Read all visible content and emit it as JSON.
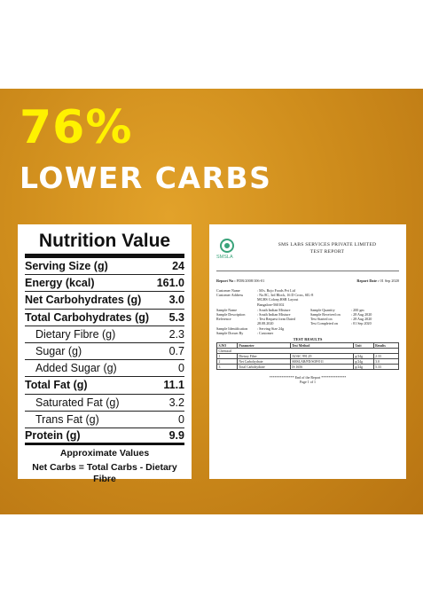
{
  "headline": {
    "percent": "76%",
    "subtitle": "LOWER CARBS"
  },
  "nutrition": {
    "title": "Nutrition Value",
    "rows": [
      {
        "label": "Serving Size (g)",
        "value": "24"
      },
      {
        "label": "Energy (kcal)",
        "value": "161.0"
      },
      {
        "label": "Net Carbohydrates (g)",
        "value": "3.0"
      },
      {
        "label": "Total Carbohydrates (g)",
        "value": "5.3"
      },
      {
        "label": "Dietary Fibre (g)",
        "value": "2.3"
      },
      {
        "label": "Sugar (g)",
        "value": "0.7"
      },
      {
        "label": "Added Sugar (g)",
        "value": "0"
      },
      {
        "label": "Total Fat (g)",
        "value": "11.1"
      },
      {
        "label": "Saturated Fat (g)",
        "value": "3.2"
      },
      {
        "label": "Trans Fat (g)",
        "value": "0"
      },
      {
        "label": "Protein (g)",
        "value": "9.9"
      }
    ],
    "footer_line1": "Approximate Values",
    "footer_line2": "Net Carbs = Total Carbs - Dietary Fibre"
  },
  "report": {
    "logo_text": "SMSLA",
    "company": "SMS LABS SERVICES PRIVATE LIMITED",
    "title": "TEST REPORT",
    "report_no_label": "Report No :",
    "report_no": "FDR/2008/106-01",
    "report_date_label": "Report Date :",
    "report_date": "01 Sep 2020",
    "customer_name_label": "Customer Name",
    "customer_name": ": M/s. Bojo Foods Pvt Ltd",
    "customer_address_label": "Customer Address",
    "customer_address_1": ": No.8C, 3rd Block, 16 D Cross, SIL-8",
    "customer_address_2": "MGHS Colony,HSR Layout",
    "customer_address_3": "Bangalore-560102",
    "left_fields": [
      {
        "k": "Sample Name",
        "v": ": South Indian Mixture"
      },
      {
        "k": "Sample Description",
        "v": ": South Indian Mixture"
      },
      {
        "k": "Reference",
        "v": ": Test Request form Dated 28.08.2020"
      },
      {
        "k": "Sample Identification",
        "v": ": Serving Size 24g"
      },
      {
        "k": "Sample Drawn By",
        "v": ": Customer"
      }
    ],
    "right_fields": [
      {
        "k": "Sample Quantity",
        "v": ": 200 gm"
      },
      {
        "k": "Sample Received on",
        "v": ": 28 Aug 2020"
      },
      {
        "k": "Test Started on",
        "v": ": 28 Aug 2020"
      },
      {
        "k": "Test Completed on",
        "v": ": 01 Sep 2020"
      }
    ],
    "results_title": "TEST RESULTS",
    "table_headers": [
      "S.NO",
      "Parameter",
      "Test Method",
      "Unit",
      "Results"
    ],
    "table_group": "Chemical",
    "table_rows": [
      [
        "1",
        "Dietary Fiber",
        "AOAC 991.29",
        "g/24g",
        "2.33"
      ],
      [
        "2",
        "Net Carbohydrate",
        "SMSLAB/FD/SOP/011",
        "g/24g",
        "3.0"
      ],
      [
        "3",
        "Total Carbohydrate",
        "IS 1656",
        "g/24g",
        "5.33"
      ]
    ],
    "end_text": "************** End of the Report **************",
    "page_text": "Page 1 of 1"
  }
}
